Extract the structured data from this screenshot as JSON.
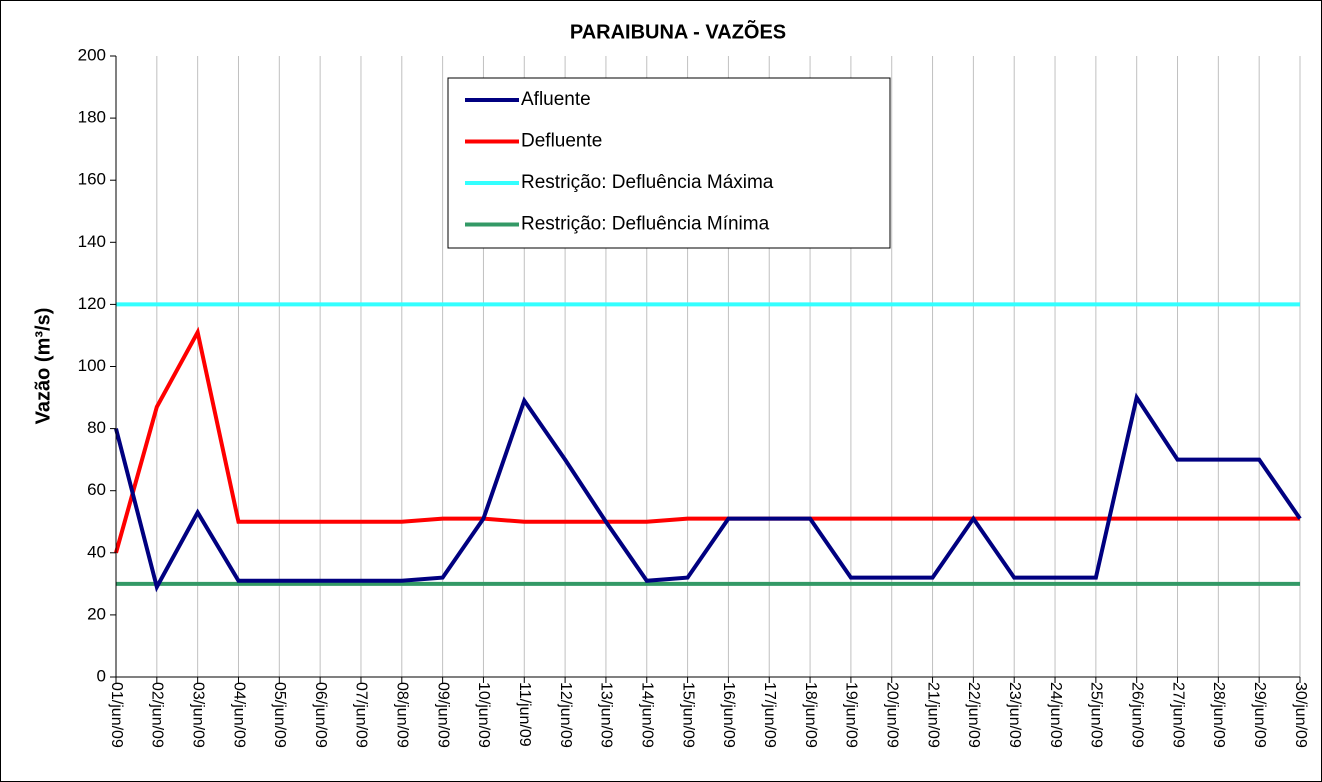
{
  "chart_data": {
    "type": "line",
    "title": "PARAIBUNA - VAZÕES",
    "y_label": "Vazão (m³/s)",
    "categories": [
      "01/jun/09",
      "02/jun/09",
      "03/jun/09",
      "04/jun/09",
      "05/jun/09",
      "06/jun/09",
      "07/jun/09",
      "08/jun/09",
      "09/jun/09",
      "10/jun/09",
      "11/jun/09",
      "12/jun/09",
      "13/jun/09",
      "14/jun/09",
      "15/jun/09",
      "16/jun/09",
      "17/jun/09",
      "18/jun/09",
      "19/jun/09",
      "20/jun/09",
      "21/jun/09",
      "22/jun/09",
      "23/jun/09",
      "24/jun/09",
      "25/jun/09",
      "26/jun/09",
      "27/jun/09",
      "28/jun/09",
      "29/jun/09",
      "30/jun/09"
    ],
    "series": [
      {
        "name": "Afluente",
        "color": "#000080",
        "values": [
          80,
          29,
          53,
          31,
          31,
          31,
          31,
          31,
          32,
          51,
          89,
          70,
          50,
          31,
          32,
          51,
          51,
          51,
          32,
          32,
          32,
          51,
          32,
          32,
          32,
          90,
          70,
          70,
          70,
          51
        ]
      },
      {
        "name": "Defluente",
        "color": "#ff0000",
        "values": [
          40,
          87,
          111,
          50,
          50,
          50,
          50,
          50,
          51,
          51,
          50,
          50,
          50,
          50,
          51,
          51,
          51,
          51,
          51,
          51,
          51,
          51,
          51,
          51,
          51,
          51,
          51,
          51,
          51,
          51
        ]
      },
      {
        "name": "Restrição: Defluência Máxima",
        "color": "#33ffff",
        "values": [
          120,
          120,
          120,
          120,
          120,
          120,
          120,
          120,
          120,
          120,
          120,
          120,
          120,
          120,
          120,
          120,
          120,
          120,
          120,
          120,
          120,
          120,
          120,
          120,
          120,
          120,
          120,
          120,
          120,
          120
        ]
      },
      {
        "name": "Restrição: Defluência Mínima",
        "color": "#339966",
        "values": [
          30,
          30,
          30,
          30,
          30,
          30,
          30,
          30,
          30,
          30,
          30,
          30,
          30,
          30,
          30,
          30,
          30,
          30,
          30,
          30,
          30,
          30,
          30,
          30,
          30,
          30,
          30,
          30,
          30,
          30
        ]
      }
    ],
    "ylim": [
      0,
      200
    ],
    "yticks": [
      0,
      20,
      40,
      60,
      80,
      100,
      120,
      140,
      160,
      180,
      200
    ],
    "xgrid": true
  }
}
